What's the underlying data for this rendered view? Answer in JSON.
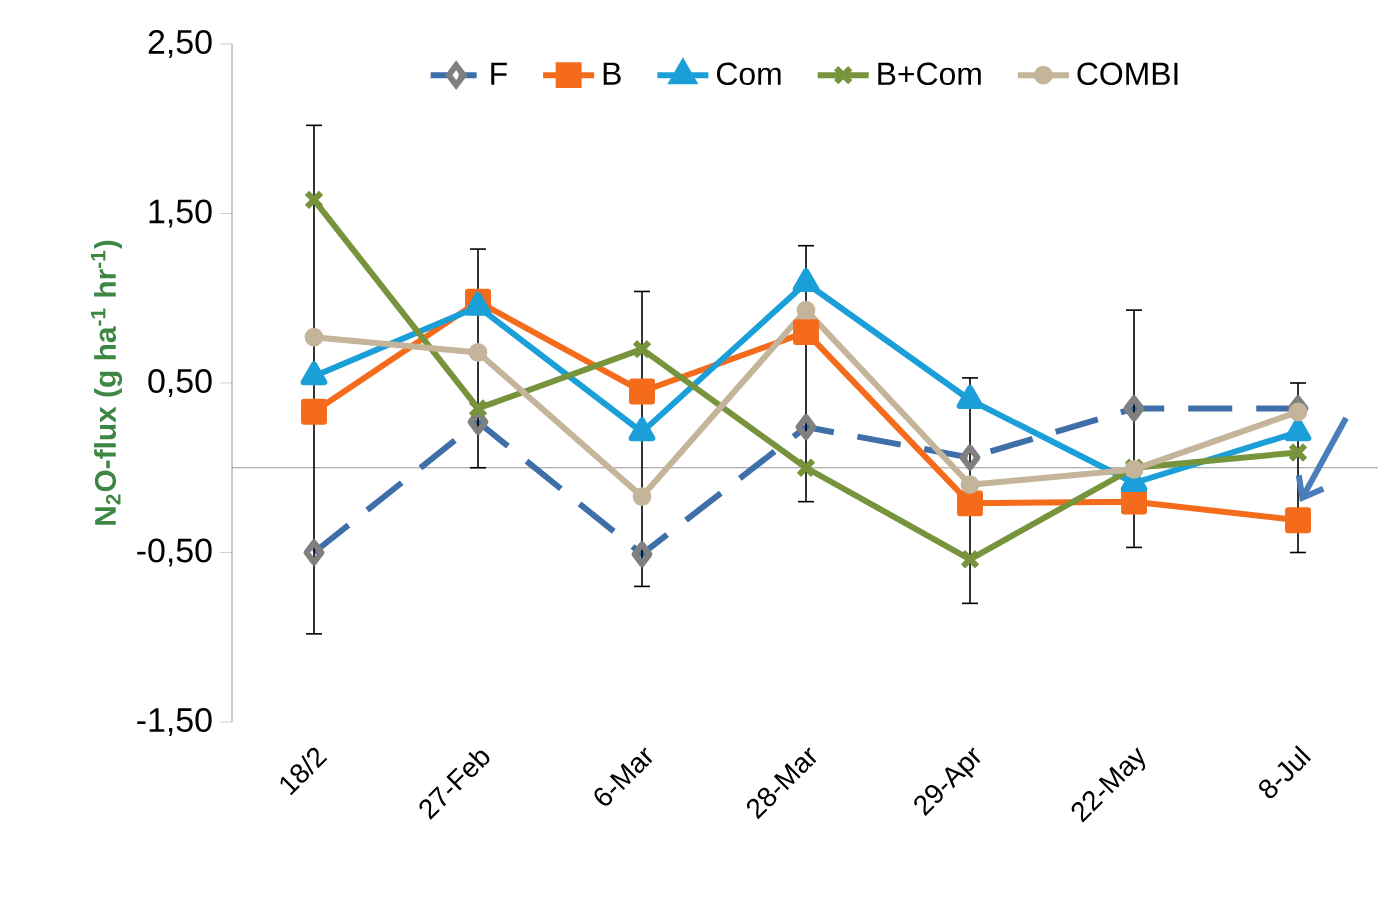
{
  "chart_data": {
    "type": "line",
    "ylabel": "N$_{2}$O-flux (g ha$^{-1}$ hr$^{-1}$)",
    "categories": [
      "18/2",
      "27-Feb",
      "6-Mar",
      "28-Mar",
      "29-Apr",
      "22-May",
      "8-Jul"
    ],
    "series": [
      {
        "name": "F",
        "color": "#3e6fa8",
        "marker": "diamond",
        "line_style": "dashed",
        "values": [
          -0.5,
          0.27,
          -0.51,
          0.24,
          0.06,
          0.35,
          0.35
        ],
        "errors": [
          null,
          null,
          null,
          null,
          null,
          [
            -0.47,
            0.93
          ],
          null
        ]
      },
      {
        "name": "B",
        "color": "#f46b1c",
        "marker": "square",
        "line_style": "solid",
        "values": [
          0.33,
          0.98,
          0.45,
          0.8,
          -0.21,
          -0.2,
          -0.31
        ],
        "errors": [
          null,
          [
            0.0,
            1.29
          ],
          null,
          null,
          null,
          null,
          [
            -0.5,
            0.5
          ]
        ]
      },
      {
        "name": "Com",
        "color": "#1a9fd9",
        "marker": "triangle",
        "line_style": "solid",
        "values": [
          0.54,
          0.95,
          0.21,
          1.09,
          0.4,
          -0.09,
          0.21
        ],
        "errors": [
          [
            -0.98,
            2.02
          ],
          null,
          [
            -0.7,
            1.04
          ],
          [
            -0.2,
            1.31
          ],
          null,
          null,
          null
        ]
      },
      {
        "name": "B+Com",
        "color": "#77933c",
        "marker": "cross",
        "line_style": "solid",
        "values": [
          1.58,
          0.35,
          0.7,
          0.0,
          -0.54,
          0.0,
          0.09
        ],
        "errors": [
          null,
          null,
          null,
          null,
          [
            -0.8,
            0.53
          ],
          null,
          null
        ]
      },
      {
        "name": "COMBI",
        "color": "#c4b49a",
        "marker": "circle",
        "line_style": "solid",
        "values": [
          0.77,
          0.68,
          -0.17,
          0.93,
          -0.1,
          -0.01,
          0.33
        ]
      }
    ],
    "ylim": [
      -1.5,
      2.5
    ],
    "yticks": [
      {
        "value": -1.5,
        "label": "-1,50"
      },
      {
        "value": -0.5,
        "label": "-0,50"
      },
      {
        "value": 0.5,
        "label": "0,50"
      },
      {
        "value": 1.5,
        "label": "1,50"
      },
      {
        "value": 2.5,
        "label": "2,50"
      }
    ],
    "grid": false,
    "legend": "top"
  }
}
